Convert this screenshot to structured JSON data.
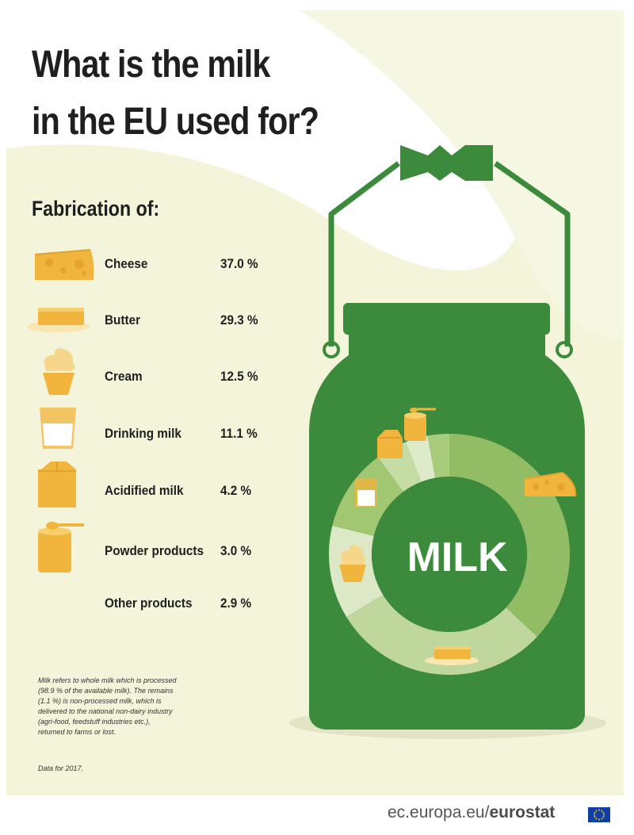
{
  "title_line1": "What is the milk",
  "title_line2": "in the EU used for?",
  "subtitle": "Fabrication of:",
  "chart_data": {
    "type": "pie",
    "center_label": "MILK",
    "categories": [
      "Cheese",
      "Butter",
      "Cream",
      "Drinking milk",
      "Acidified milk",
      "Powder products",
      "Other products"
    ],
    "values": [
      37.0,
      29.3,
      12.5,
      11.1,
      4.2,
      3.0,
      2.9
    ],
    "value_labels": [
      "37.0 %",
      "29.3 %",
      "12.5 %",
      "11.1 %",
      "4.2 %",
      "3.0 %",
      "2.9 %"
    ],
    "colors": [
      "#93bd64",
      "#bfd79c",
      "#dde9c6",
      "#a2c772",
      "#c6dca5",
      "#deeac9",
      "#a9cb7c"
    ]
  },
  "icons": [
    "cheese-icon",
    "butter-icon",
    "cream-icon",
    "drinking-milk-icon",
    "acidified-milk-icon",
    "powder-products-icon"
  ],
  "note_lines": [
    "Milk refers to whole milk which is processed",
    "(98.9 % of the available milk). The remains",
    "(1.1 %) is non-processed milk, which is",
    "delivered to the national non-dairy industry",
    "(agri-food, feedstuff industries etc.),",
    "returned to farms or lost."
  ],
  "data_year": "Data for 2017.",
  "footer_prefix": "ec.europa.eu/",
  "footer_brand": "eurostat",
  "colors": {
    "can_green": "#3c8a3c",
    "background_cream": "#f3f4d9",
    "icon_orange": "#f1b43c",
    "text_dark": "#1f1f1f"
  }
}
